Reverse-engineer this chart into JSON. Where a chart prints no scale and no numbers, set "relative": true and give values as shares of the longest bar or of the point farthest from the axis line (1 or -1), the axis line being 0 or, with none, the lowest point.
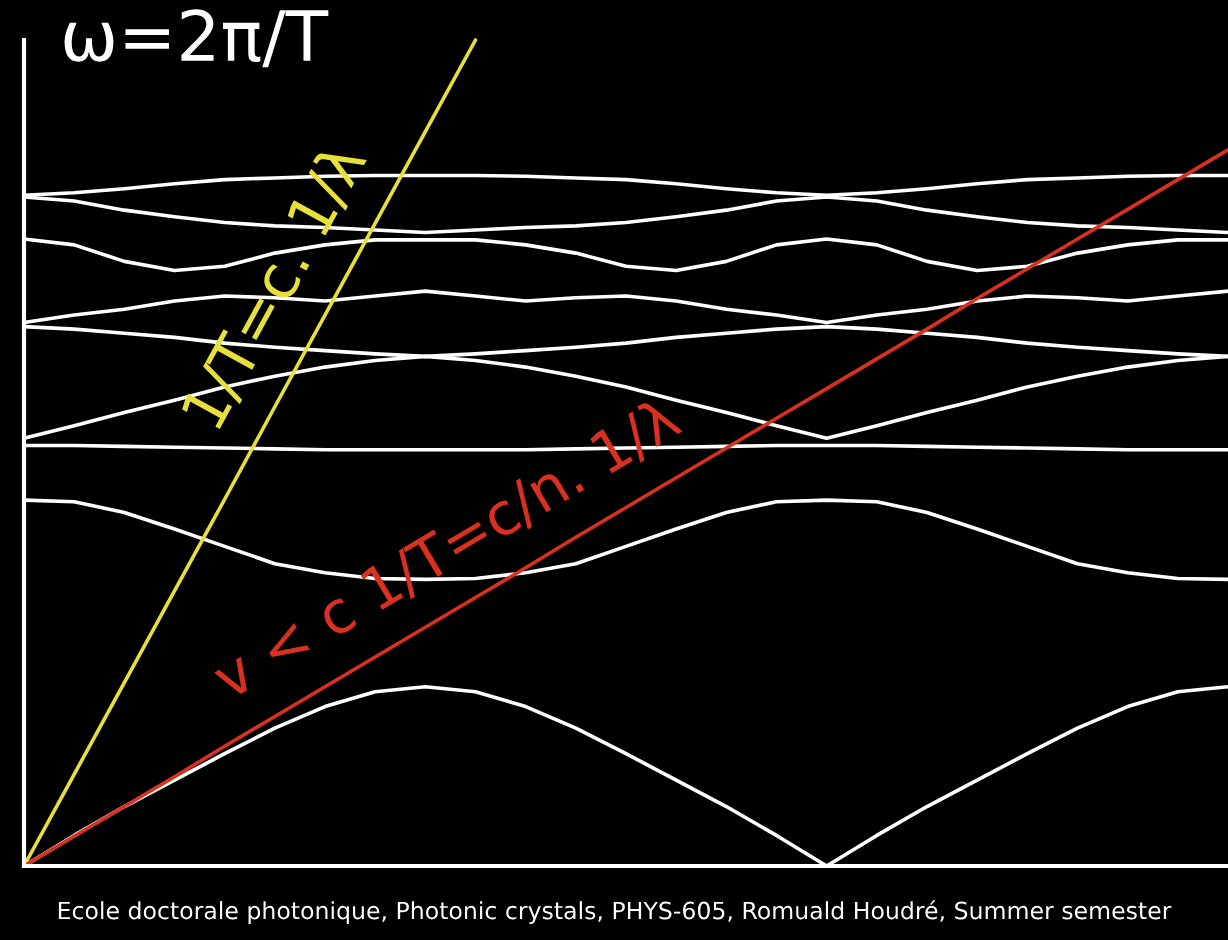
{
  "chart_data": {
    "type": "line",
    "title": "ω=2π/T",
    "relative": true,
    "legend": false,
    "grid": false,
    "marker": "none",
    "line_style": "solid",
    "categories": [
      null,
      null,
      null,
      null,
      null,
      null,
      null,
      null,
      null,
      null,
      null,
      null,
      null,
      null,
      null,
      null,
      null,
      null,
      null,
      null,
      null,
      null,
      null,
      null,
      null
    ],
    "annotations": [
      "Ecole doctorale photonique, Photonic crystals, PHYS-605, Romuald Houdré, Summer semester"
    ],
    "series": [
      {
        "color": "#ffffff",
        "values": [
          0,
          0.037,
          0.072,
          0.104,
          0.136,
          0.167,
          0.193,
          0.211,
          0.217,
          0.211,
          0.193,
          0.167,
          0.136,
          0.104,
          0.072,
          0.037,
          0,
          0.037,
          0.072,
          0.104,
          0.136,
          0.167,
          0.193,
          0.211,
          0.217
        ]
      },
      {
        "color": "#ffffff",
        "values": [
          0.443,
          0.441,
          0.428,
          0.408,
          0.387,
          0.366,
          0.355,
          0.348,
          0.347,
          0.348,
          0.355,
          0.366,
          0.387,
          0.408,
          0.428,
          0.441,
          0.443,
          0.441,
          0.428,
          0.408,
          0.387,
          0.366,
          0.355,
          0.348,
          0.347
        ]
      },
      {
        "color": "#ffffff",
        "values": [
          0.509,
          0.509,
          0.508,
          0.507,
          0.506,
          0.505,
          0.504,
          0.504,
          0.504,
          0.504,
          0.504,
          0.505,
          0.506,
          0.507,
          0.508,
          0.509,
          0.509,
          0.509,
          0.508,
          0.507,
          0.506,
          0.505,
          0.504,
          0.504,
          0.504
        ]
      },
      {
        "color": "#ffffff",
        "values": [
          0.518,
          0.533,
          0.549,
          0.564,
          0.58,
          0.593,
          0.604,
          0.612,
          0.617,
          0.612,
          0.604,
          0.593,
          0.58,
          0.564,
          0.549,
          0.533,
          0.518,
          0.533,
          0.549,
          0.564,
          0.58,
          0.593,
          0.604,
          0.612,
          0.617
        ]
      },
      {
        "color": "#ffffff",
        "values": [
          0.653,
          0.65,
          0.645,
          0.64,
          0.633,
          0.628,
          0.624,
          0.62,
          0.617,
          0.62,
          0.624,
          0.628,
          0.633,
          0.64,
          0.645,
          0.65,
          0.653,
          0.65,
          0.645,
          0.64,
          0.633,
          0.628,
          0.624,
          0.62,
          0.617
        ]
      },
      {
        "color": "#ffffff",
        "values": [
          0.658,
          0.667,
          0.674,
          0.684,
          0.69,
          0.688,
          0.684,
          0.69,
          0.696,
          0.69,
          0.684,
          0.688,
          0.69,
          0.684,
          0.674,
          0.667,
          0.658,
          0.667,
          0.674,
          0.684,
          0.69,
          0.688,
          0.684,
          0.69,
          0.696
        ]
      },
      {
        "color": "#ffffff",
        "values": [
          0.759,
          0.752,
          0.732,
          0.721,
          0.726,
          0.742,
          0.752,
          0.758,
          0.758,
          0.758,
          0.752,
          0.742,
          0.726,
          0.721,
          0.732,
          0.752,
          0.759,
          0.752,
          0.732,
          0.721,
          0.726,
          0.742,
          0.752,
          0.758,
          0.758
        ]
      },
      {
        "color": "#ffffff",
        "values": [
          0.81,
          0.805,
          0.794,
          0.786,
          0.779,
          0.775,
          0.773,
          0.77,
          0.767,
          0.77,
          0.773,
          0.775,
          0.779,
          0.786,
          0.794,
          0.805,
          0.81,
          0.805,
          0.794,
          0.786,
          0.779,
          0.775,
          0.773,
          0.77,
          0.767
        ]
      },
      {
        "color": "#ffffff",
        "values": [
          0.812,
          0.815,
          0.82,
          0.826,
          0.831,
          0.833,
          0.835,
          0.836,
          0.836,
          0.836,
          0.835,
          0.833,
          0.831,
          0.826,
          0.82,
          0.815,
          0.812,
          0.815,
          0.82,
          0.826,
          0.831,
          0.833,
          0.835,
          0.836,
          0.836
        ]
      },
      {
        "name": "1/T=c. 1/λ",
        "color": "#e8e03a",
        "values": [
          0,
          0.111,
          0.222,
          0.333,
          0.444,
          0.556,
          0.667,
          0.778,
          0.889,
          1,
          null,
          null,
          null,
          null,
          null,
          null,
          null,
          null,
          null,
          null,
          null,
          null,
          null,
          null,
          null
        ]
      },
      {
        "name": "v < c 1/T=c/n. 1/λ",
        "color": "#d93020",
        "values": [
          0,
          0.036,
          0.072,
          0.108,
          0.145,
          0.181,
          0.217,
          0.253,
          0.289,
          0.325,
          0.361,
          0.398,
          0.434,
          0.47,
          0.506,
          0.542,
          0.578,
          0.614,
          0.65,
          0.687,
          0.723,
          0.759,
          0.795,
          0.831,
          0.867
        ]
      }
    ]
  }
}
